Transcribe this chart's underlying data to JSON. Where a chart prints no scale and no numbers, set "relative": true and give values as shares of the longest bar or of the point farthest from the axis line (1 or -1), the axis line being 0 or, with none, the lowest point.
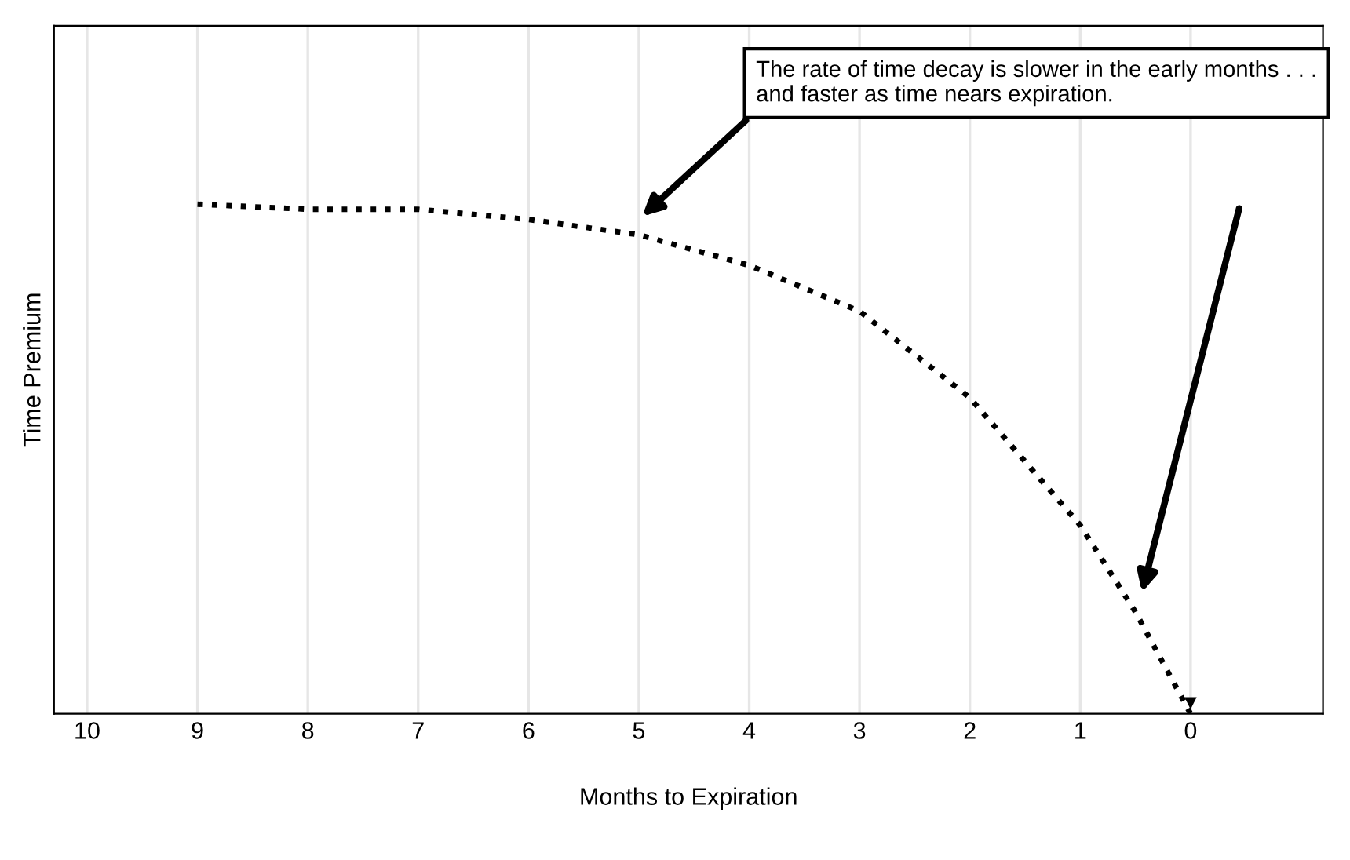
{
  "chart_data": {
    "type": "line",
    "xlabel": "Months to Expiration",
    "ylabel": "Time Premium",
    "x": [
      9,
      8,
      7,
      6,
      5,
      4,
      3,
      2,
      1,
      0.5,
      0
    ],
    "series": [
      {
        "color": "#000000",
        "values": [
          1.0,
          0.99,
          0.99,
          0.97,
          0.94,
          0.88,
          0.79,
          0.62,
          0.37,
          0.2,
          0
        ]
      }
    ],
    "relative": true,
    "xlim": [
      10.3,
      -1.2
    ],
    "xticks": [
      10,
      9,
      8,
      7,
      6,
      5,
      4,
      3,
      2,
      1,
      0
    ],
    "annotations": [
      "The rate of time decay is slower in the early months . . . and faster as time nears expiration."
    ],
    "grid": true,
    "marker": "none",
    "line_style": "dotted",
    "legend": false
  }
}
